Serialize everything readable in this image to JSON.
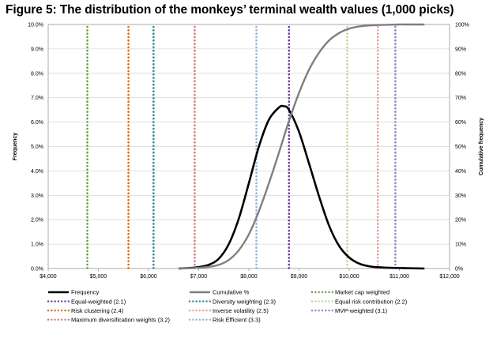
{
  "figure": {
    "title": "Figure 5: The distribution of the monkeys’ terminal wealth values (1,000 picks)"
  },
  "chart_data": {
    "type": "line",
    "title": "Figure 5: The distribution of the monkeys’ terminal wealth values (1,000 picks)",
    "xlabel": "",
    "ylabel": "Frequency",
    "y2label": "Cumulative frequency",
    "xlim": [
      4000,
      12000
    ],
    "ylim": [
      0,
      10
    ],
    "y2lim": [
      0,
      100
    ],
    "grid": true,
    "legend_position": "bottom",
    "x_ticks": [
      4000,
      5000,
      6000,
      7000,
      8000,
      9000,
      10000,
      11000,
      12000
    ],
    "x_tick_labels": [
      "$4,000",
      "$5,000",
      "$6,000",
      "$7,000",
      "$8,000",
      "$9,000",
      "$10,000",
      "$11,000",
      "$12,000"
    ],
    "y_ticks": [
      0,
      1,
      2,
      3,
      4,
      5,
      6,
      7,
      8,
      9,
      10
    ],
    "y_tick_labels": [
      "0.0%",
      "1.0%",
      "2.0%",
      "3.0%",
      "4.0%",
      "5.0%",
      "6.0%",
      "7.0%",
      "8.0%",
      "9.0%",
      "10.0%"
    ],
    "y2_ticks": [
      0,
      10,
      20,
      30,
      40,
      50,
      60,
      70,
      80,
      90,
      100
    ],
    "y2_tick_labels": [
      "0%",
      "10%",
      "20%",
      "30%",
      "40%",
      "50%",
      "60%",
      "70%",
      "80%",
      "90%",
      "100%"
    ],
    "series": [
      {
        "name": "Frequency",
        "axis": "left",
        "color": "#000000",
        "style": "solid",
        "x": [
          6600,
          6800,
          7000,
          7200,
          7400,
          7600,
          7800,
          8000,
          8200,
          8400,
          8600,
          8700,
          8800,
          9000,
          9200,
          9400,
          9600,
          9800,
          10000,
          10200,
          10400,
          10600,
          10800,
          11000,
          11200,
          11500
        ],
        "y": [
          0.0,
          0.02,
          0.06,
          0.15,
          0.4,
          1.0,
          2.05,
          3.5,
          5.0,
          6.1,
          6.6,
          6.65,
          6.5,
          5.6,
          4.3,
          2.95,
          1.75,
          0.92,
          0.45,
          0.2,
          0.09,
          0.05,
          0.03,
          0.02,
          0.01,
          0.0
        ]
      },
      {
        "name": "Cumulative %",
        "axis": "right",
        "color": "#7f7f7f",
        "style": "solid",
        "x": [
          6600,
          6800,
          7000,
          7200,
          7400,
          7600,
          7800,
          8000,
          8200,
          8400,
          8600,
          8800,
          9000,
          9200,
          9400,
          9600,
          9800,
          10000,
          10200,
          10400,
          10600,
          10800,
          11000,
          11200,
          11500
        ],
        "y": [
          0.0,
          0.1,
          0.3,
          0.7,
          1.5,
          3.5,
          7.5,
          14.0,
          23.5,
          35.0,
          47.5,
          60.5,
          72.0,
          81.5,
          88.5,
          93.5,
          96.5,
          98.3,
          99.2,
          99.6,
          99.8,
          99.9,
          100.0,
          100.0,
          100.0
        ]
      }
    ],
    "vertical_lines": [
      {
        "name": "Market cap weighted",
        "x": 4780,
        "color": "#70a040"
      },
      {
        "name": "Equal-weighted (2.1)",
        "x": 8800,
        "color": "#6a3d9a"
      },
      {
        "name": "Diversity weighting (2.3)",
        "x": 6100,
        "color": "#31859c"
      },
      {
        "name": "Equal risk contribution (2.2)",
        "x": 9960,
        "color": "#c2d69b"
      },
      {
        "name": "Risk clustering (2.4)",
        "x": 5600,
        "color": "#e26b0a"
      },
      {
        "name": "Inverse volatility (2.5)",
        "x": 10570,
        "color": "#e6a09a"
      },
      {
        "name": "MVP-weighted (3.1)",
        "x": 10920,
        "color": "#8e86c5"
      },
      {
        "name": "Maximum diversification weights (3.2)",
        "x": 6920,
        "color": "#d9787a"
      },
      {
        "name": "Risk Efficient (3.3)",
        "x": 8150,
        "color": "#8eb4e3"
      }
    ],
    "legend": [
      {
        "label": "Frequency",
        "color": "#000000",
        "style": "solid"
      },
      {
        "label": "Cumulative %",
        "color": "#7f7f7f",
        "style": "solid"
      },
      {
        "label": "Market cap weighted",
        "color": "#70a040",
        "style": "dotted"
      },
      {
        "label": "Equal-weighted (2.1)",
        "color": "#6a3d9a",
        "style": "dotted"
      },
      {
        "label": "Diversity weighting (2.3)",
        "color": "#31859c",
        "style": "dotted"
      },
      {
        "label": "Equal risk contribution (2.2)",
        "color": "#c2d69b",
        "style": "dotted"
      },
      {
        "label": "Risk clustering (2.4)",
        "color": "#e26b0a",
        "style": "dotted"
      },
      {
        "label": "Inverse volatility (2.5)",
        "color": "#e6a09a",
        "style": "dotted"
      },
      {
        "label": "MVP-weighted (3.1)",
        "color": "#8e86c5",
        "style": "dotted"
      },
      {
        "label": "Maximum diversification weights (3.2)",
        "color": "#d9787a",
        "style": "dotted"
      },
      {
        "label": "Risk Efficient (3.3)",
        "color": "#8eb4e3",
        "style": "dotted"
      }
    ]
  }
}
